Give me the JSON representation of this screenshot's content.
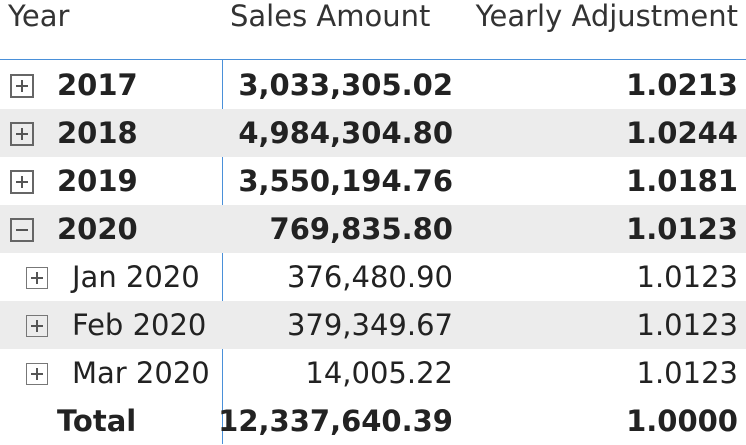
{
  "matrix": {
    "columns": {
      "year": "Year",
      "sales": "Sales Amount",
      "adj": "Yearly Adjustment"
    },
    "rows": [
      {
        "label": "2017",
        "sales": "3,033,305.02",
        "adj": "1.0213",
        "level": 0,
        "toggle": "expand-icon"
      },
      {
        "label": "2018",
        "sales": "4,984,304.80",
        "adj": "1.0244",
        "level": 0,
        "toggle": "expand-icon"
      },
      {
        "label": "2019",
        "sales": "3,550,194.76",
        "adj": "1.0181",
        "level": 0,
        "toggle": "expand-icon"
      },
      {
        "label": "2020",
        "sales": "769,835.80",
        "adj": "1.0123",
        "level": 0,
        "toggle": "collapse-icon"
      },
      {
        "label": "Jan 2020",
        "sales": "376,480.90",
        "adj": "1.0123",
        "level": 1,
        "toggle": "expand-icon"
      },
      {
        "label": "Feb 2020",
        "sales": "379,349.67",
        "adj": "1.0123",
        "level": 1,
        "toggle": "expand-icon"
      },
      {
        "label": "Mar 2020",
        "sales": "14,005.22",
        "adj": "1.0123",
        "level": 1,
        "toggle": "expand-icon"
      }
    ],
    "total": {
      "label": "Total",
      "sales": "12,337,640.39",
      "adj": "1.0000"
    },
    "colors": {
      "accent_line": "#4a90d9",
      "row_shade": "#ececec"
    }
  }
}
